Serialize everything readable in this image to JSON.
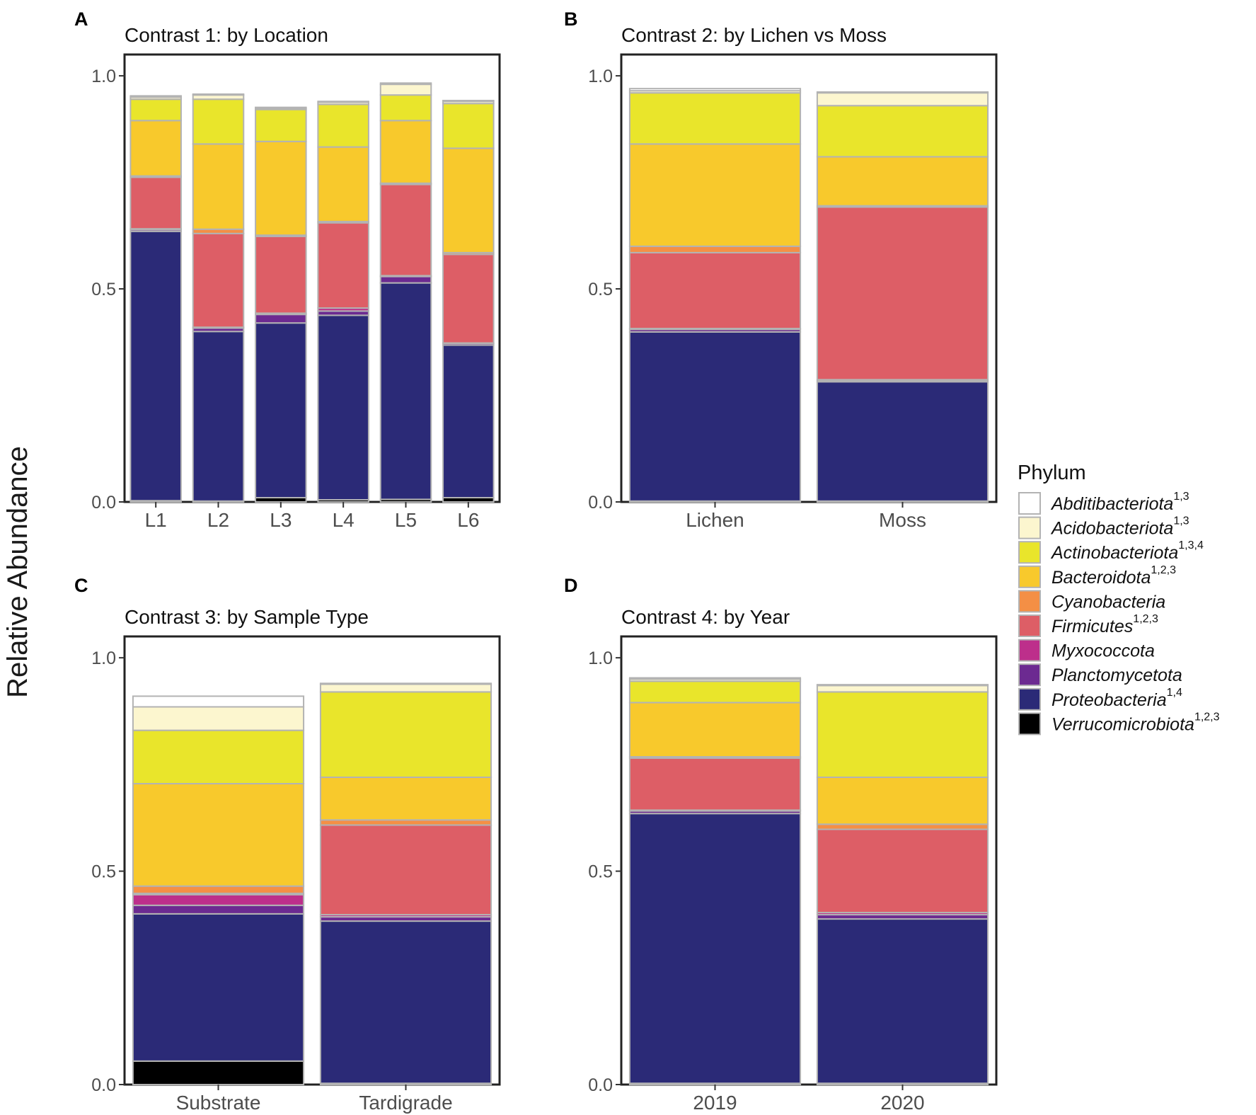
{
  "y_axis_title": "Relative Abundance",
  "legend": {
    "title": "Phylum",
    "items": [
      {
        "name": "Abditibacteriota",
        "sup": "1,3",
        "color": "#ffffff"
      },
      {
        "name": "Acidobacteriota",
        "sup": "1,3",
        "color": "#fcf6cf"
      },
      {
        "name": "Actinobacteriota",
        "sup": "1,3,4",
        "color": "#e9e52b"
      },
      {
        "name": "Bacteroidota",
        "sup": "1,2,3",
        "color": "#f8c92c"
      },
      {
        "name": "Cyanobacteria",
        "sup": "",
        "color": "#f48f45"
      },
      {
        "name": "Firmicutes",
        "sup": "1,2,3",
        "color": "#dd5e66"
      },
      {
        "name": "Myxococcota",
        "sup": "",
        "color": "#bd2f8b"
      },
      {
        "name": "Planctomycetota",
        "sup": "",
        "color": "#6c2a91"
      },
      {
        "name": "Proteobacteria",
        "sup": "1,4",
        "color": "#2b2a77"
      },
      {
        "name": "Verrucomicrobiota",
        "sup": "1,2,3",
        "color": "#000000"
      }
    ]
  },
  "chart_data": [
    {
      "panel": "A",
      "type": "bar",
      "stacked": true,
      "title": "Contrast 1: by Location",
      "xlabel": "",
      "ylabel": "Relative Abundance",
      "ylim": [
        0,
        1.05
      ],
      "yticks": [
        "0.0",
        "0.5",
        "1.0"
      ],
      "categories": [
        "L1",
        "L2",
        "L3",
        "L4",
        "L5",
        "L6"
      ],
      "series": [
        {
          "name": "Verrucomicrobiota",
          "values": [
            0.003,
            0.002,
            0.01,
            0.005,
            0.006,
            0.01
          ]
        },
        {
          "name": "Proteobacteria",
          "values": [
            0.632,
            0.398,
            0.41,
            0.433,
            0.508,
            0.358
          ]
        },
        {
          "name": "Planctomycetota",
          "values": [
            0.004,
            0.008,
            0.02,
            0.01,
            0.015,
            0.004
          ]
        },
        {
          "name": "Myxococcota",
          "values": [
            0.002,
            0.002,
            0.003,
            0.007,
            0.002,
            0.001
          ]
        },
        {
          "name": "Firmicutes",
          "values": [
            0.121,
            0.22,
            0.18,
            0.2,
            0.214,
            0.208
          ]
        },
        {
          "name": "Cyanobacteria",
          "values": [
            0.003,
            0.01,
            0.003,
            0.003,
            0.003,
            0.004
          ]
        },
        {
          "name": "Bacteroidota",
          "values": [
            0.13,
            0.2,
            0.22,
            0.175,
            0.147,
            0.245
          ]
        },
        {
          "name": "Actinobacteriota",
          "values": [
            0.05,
            0.105,
            0.075,
            0.1,
            0.06,
            0.105
          ]
        },
        {
          "name": "Acidobacteriota",
          "values": [
            0.005,
            0.01,
            0.003,
            0.005,
            0.025,
            0.005
          ]
        },
        {
          "name": "Abditibacteriota",
          "values": [
            0.003,
            0.002,
            0.002,
            0.002,
            0.003,
            0.002
          ]
        }
      ]
    },
    {
      "panel": "B",
      "type": "bar",
      "stacked": true,
      "title": "Contrast 2: by Lichen vs Moss",
      "xlabel": "",
      "ylabel": "Relative Abundance",
      "ylim": [
        0,
        1.05
      ],
      "yticks": [
        "0.0",
        "0.5",
        "1.0"
      ],
      "categories": [
        "Lichen",
        "Moss"
      ],
      "series": [
        {
          "name": "Verrucomicrobiota",
          "values": [
            0.002,
            0.002
          ]
        },
        {
          "name": "Proteobacteria",
          "values": [
            0.397,
            0.28
          ]
        },
        {
          "name": "Planctomycetota",
          "values": [
            0.006,
            0.003
          ]
        },
        {
          "name": "Myxococcota",
          "values": [
            0.002,
            0.002
          ]
        },
        {
          "name": "Firmicutes",
          "values": [
            0.178,
            0.405
          ]
        },
        {
          "name": "Cyanobacteria",
          "values": [
            0.015,
            0.003
          ]
        },
        {
          "name": "Bacteroidota",
          "values": [
            0.24,
            0.115
          ]
        },
        {
          "name": "Actinobacteriota",
          "values": [
            0.12,
            0.12
          ]
        },
        {
          "name": "Acidobacteriota",
          "values": [
            0.005,
            0.03
          ]
        },
        {
          "name": "Abditibacteriota",
          "values": [
            0.005,
            0.002
          ]
        }
      ]
    },
    {
      "panel": "C",
      "type": "bar",
      "stacked": true,
      "title": "Contrast 3: by Sample Type",
      "xlabel": "",
      "ylabel": "Relative Abundance",
      "ylim": [
        0,
        1.05
      ],
      "yticks": [
        "0.0",
        "0.5",
        "1.0"
      ],
      "categories": [
        "Substrate",
        "Tardigrade"
      ],
      "series": [
        {
          "name": "Verrucomicrobiota",
          "values": [
            0.055,
            0.003
          ]
        },
        {
          "name": "Proteobacteria",
          "values": [
            0.345,
            0.38
          ]
        },
        {
          "name": "Planctomycetota",
          "values": [
            0.02,
            0.01
          ]
        },
        {
          "name": "Myxococcota",
          "values": [
            0.025,
            0.005
          ]
        },
        {
          "name": "Firmicutes",
          "values": [
            0.003,
            0.21
          ]
        },
        {
          "name": "Cyanobacteria",
          "values": [
            0.017,
            0.012
          ]
        },
        {
          "name": "Bacteroidota",
          "values": [
            0.24,
            0.1
          ]
        },
        {
          "name": "Actinobacteriota",
          "values": [
            0.125,
            0.2
          ]
        },
        {
          "name": "Acidobacteriota",
          "values": [
            0.055,
            0.018
          ]
        },
        {
          "name": "Abditibacteriota",
          "values": [
            0.025,
            0.002
          ]
        }
      ]
    },
    {
      "panel": "D",
      "type": "bar",
      "stacked": true,
      "title": "Contrast 4: by Year",
      "xlabel": "",
      "ylabel": "Relative Abundance",
      "ylim": [
        0,
        1.05
      ],
      "yticks": [
        "0.0",
        "0.5",
        "1.0"
      ],
      "categories": [
        "2019",
        "2020"
      ],
      "series": [
        {
          "name": "Verrucomicrobiota",
          "values": [
            0.003,
            0.003
          ]
        },
        {
          "name": "Proteobacteria",
          "values": [
            0.632,
            0.385
          ]
        },
        {
          "name": "Planctomycetota",
          "values": [
            0.006,
            0.01
          ]
        },
        {
          "name": "Myxococcota",
          "values": [
            0.002,
            0.005
          ]
        },
        {
          "name": "Firmicutes",
          "values": [
            0.122,
            0.195
          ]
        },
        {
          "name": "Cyanobacteria",
          "values": [
            0.003,
            0.012
          ]
        },
        {
          "name": "Bacteroidota",
          "values": [
            0.127,
            0.11
          ]
        },
        {
          "name": "Actinobacteriota",
          "values": [
            0.05,
            0.2
          ]
        },
        {
          "name": "Acidobacteriota",
          "values": [
            0.005,
            0.015
          ]
        },
        {
          "name": "Abditibacteriota",
          "values": [
            0.003,
            0.002
          ]
        }
      ]
    }
  ]
}
